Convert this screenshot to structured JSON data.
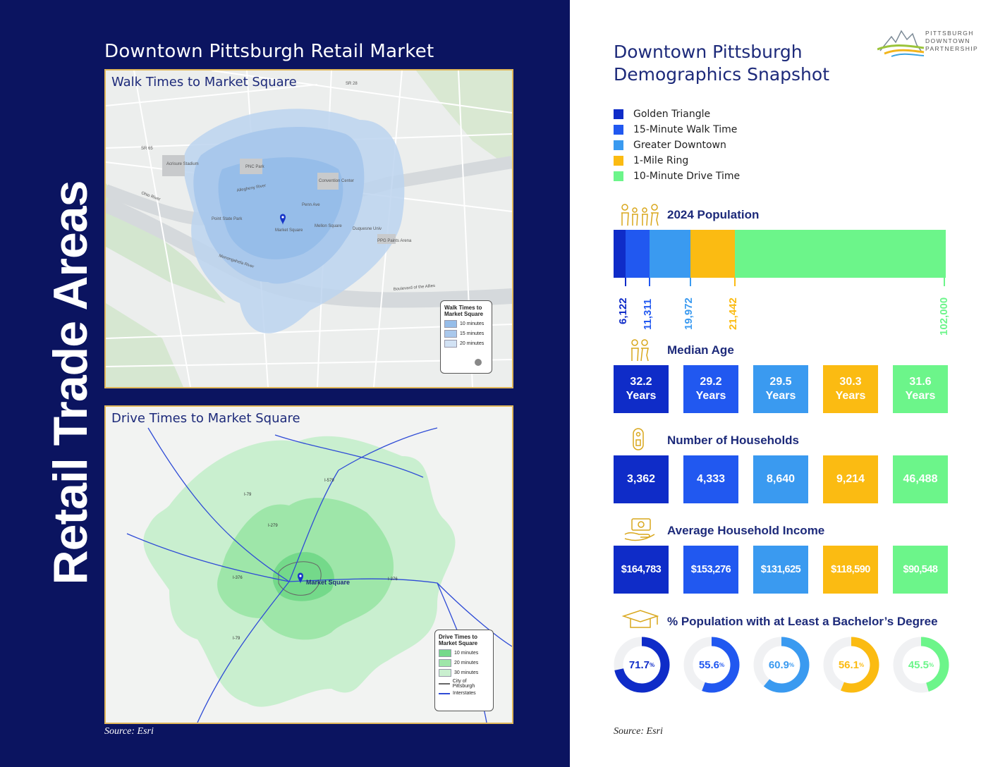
{
  "left": {
    "vertical_title": "Retail Trade Areas",
    "heading": "Downtown Pittsburgh Retail Market",
    "walk_map": {
      "title": "Walk Times to Market Square",
      "legend_title": "Walk Times to Market Square",
      "legend_items": [
        "10 minutes",
        "15 minutes",
        "20 minutes"
      ],
      "labels": [
        "Acrisure Stadium",
        "PNC Park",
        "Allegheny River",
        "Ohio River",
        "Convention Center",
        "Point State Park",
        "Market Square",
        "Mellon Square",
        "Duquesne Univ",
        "PPG Paints Arena",
        "Monongahela River",
        "Boulevard of the Allies",
        "Penn Ave",
        "SR 28",
        "SR 65"
      ]
    },
    "drive_map": {
      "title": "Drive Times to Market Square",
      "marker_label": "Market Square",
      "legend_title": "Drive Times to Market Square",
      "legend_items": [
        "10 minutes",
        "20 minutes",
        "30 minutes",
        "City of Pittsburgh",
        "Interstates"
      ],
      "road_labels": [
        "I-79",
        "I-279",
        "I-376",
        "I-376",
        "I-579",
        "I-79"
      ]
    },
    "source": "Source: Esri"
  },
  "right": {
    "heading_line1": "Downtown Pittsburgh",
    "heading_line2": "Demographics Snapshot",
    "logo_text": [
      "PITTSBURGH",
      "DOWNTOWN",
      "PARTNERSHIP"
    ],
    "legend": [
      {
        "label": "Golden Triangle",
        "color": "#0f2cc8"
      },
      {
        "label": "15-Minute Walk Time",
        "color": "#2158f0"
      },
      {
        "label": "Greater Downtown",
        "color": "#3a9af0"
      },
      {
        "label": "1-Mile Ring",
        "color": "#fbbb12"
      },
      {
        "label": "10-Minute Drive Time",
        "color": "#6cf58a"
      }
    ],
    "population": {
      "title": "2024 Population",
      "labels": [
        "6,122",
        "11,311",
        "19,972",
        "21,442",
        "102,000"
      ],
      "values": [
        6122,
        11311,
        19972,
        21442,
        102000
      ]
    },
    "median_age": {
      "title": "Median Age",
      "values": [
        "32.2",
        "29.2",
        "29.5",
        "30.3",
        "31.6"
      ],
      "unit": "Years"
    },
    "households": {
      "title": "Number of Households",
      "values": [
        "3,362",
        "4,333",
        "8,640",
        "9,214",
        "46,488"
      ]
    },
    "income": {
      "title": "Average Household Income",
      "values": [
        "$164,783",
        "$153,276",
        "$131,625",
        "$118,590",
        "$90,548"
      ]
    },
    "education": {
      "title": "% Population with at Least a Bachelor’s Degree",
      "values": [
        "71.7",
        "55.6",
        "60.9",
        "56.1",
        "45.5"
      ],
      "percent_values": [
        71.7,
        55.6,
        60.9,
        56.1,
        45.5
      ],
      "suffix": "%"
    },
    "source": "Source: Esri"
  }
}
